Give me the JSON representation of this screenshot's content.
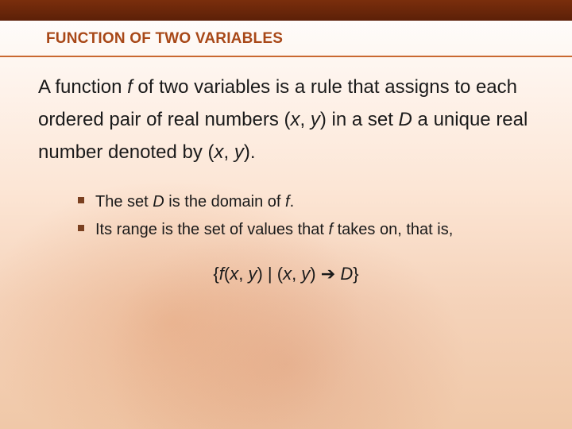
{
  "colors": {
    "topbar_gradient_start": "#7a2e0c",
    "topbar_gradient_end": "#5c2008",
    "title_color": "#a84818",
    "underline_color": "#c96830",
    "text_color": "#1a1a1a",
    "bullet_color": "#7a4020",
    "bg_top": "#ffffff",
    "bg_mid": "#fce5d4",
    "bg_bottom": "#f0c8a8"
  },
  "title": "FUNCTION OF TWO VARIABLES",
  "body": {
    "seg1": "A function ",
    "f": "f",
    "seg2": " of two variables is a rule that assigns to each ordered pair of real numbers (",
    "x": "x",
    "comma1": ", ",
    "y": "y",
    "seg3": ") in a set ",
    "D": "D",
    "seg4": " a unique real number denoted by (",
    "x2": "x",
    "comma2": ", ",
    "y2": "y",
    "seg5": ")."
  },
  "bullets": {
    "b1": {
      "seg1": "The set ",
      "D": "D",
      "seg2": " is the domain of ",
      "f": "f",
      "seg3": "."
    },
    "b2": {
      "seg1": "Its range is the set of values that ",
      "f": "f",
      "seg2": " takes on, that is,"
    }
  },
  "range": {
    "open": "{",
    "f": "f",
    "p1": "(",
    "x": "x",
    "c1": ", ",
    "y": "y",
    "p2": ") | (",
    "x2": "x",
    "c2": ", ",
    "y2": "y",
    "p3": ") ",
    "arrow": "➔",
    "sp": " ",
    "D": "D",
    "close": "}"
  }
}
